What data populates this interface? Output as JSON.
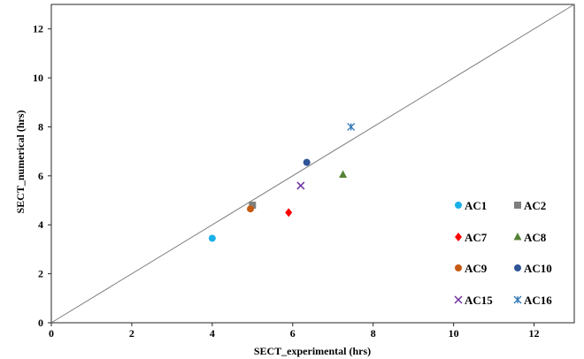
{
  "chart_data": {
    "type": "scatter",
    "title": "",
    "xlabel": "SECT_experimental (hrs)",
    "ylabel": "SECT_numerical (hrs)",
    "xlim": [
      0,
      13
    ],
    "ylim": [
      0,
      13
    ],
    "xticks": [
      0,
      2,
      4,
      6,
      8,
      10,
      12
    ],
    "yticks": [
      0,
      2,
      4,
      6,
      8,
      10,
      12
    ],
    "grid": false,
    "legend_position": "bottom-right",
    "reference_line": {
      "type": "identity",
      "color": "#808080"
    },
    "series": [
      {
        "name": "AC1",
        "marker": "circle",
        "color": "#1ab0e8",
        "x": [
          4.0
        ],
        "y": [
          3.45
        ]
      },
      {
        "name": "AC2",
        "marker": "square",
        "color": "#7f7f7f",
        "x": [
          5.0
        ],
        "y": [
          4.8
        ]
      },
      {
        "name": "AC7",
        "marker": "diamond",
        "color": "#ff0000",
        "x": [
          5.9
        ],
        "y": [
          4.5
        ]
      },
      {
        "name": "AC8",
        "marker": "triangle",
        "color": "#548235",
        "x": [
          7.25
        ],
        "y": [
          6.05
        ]
      },
      {
        "name": "AC9",
        "marker": "circle",
        "color": "#c55a11",
        "x": [
          4.95
        ],
        "y": [
          4.65
        ]
      },
      {
        "name": "AC10",
        "marker": "circle",
        "color": "#2f5597",
        "x": [
          6.35
        ],
        "y": [
          6.55
        ]
      },
      {
        "name": "AC15",
        "marker": "x",
        "color": "#7030a0",
        "x": [
          6.2
        ],
        "y": [
          5.6
        ]
      },
      {
        "name": "AC16",
        "marker": "star",
        "color": "#2e75b6",
        "x": [
          7.45
        ],
        "y": [
          8.0
        ]
      }
    ]
  }
}
